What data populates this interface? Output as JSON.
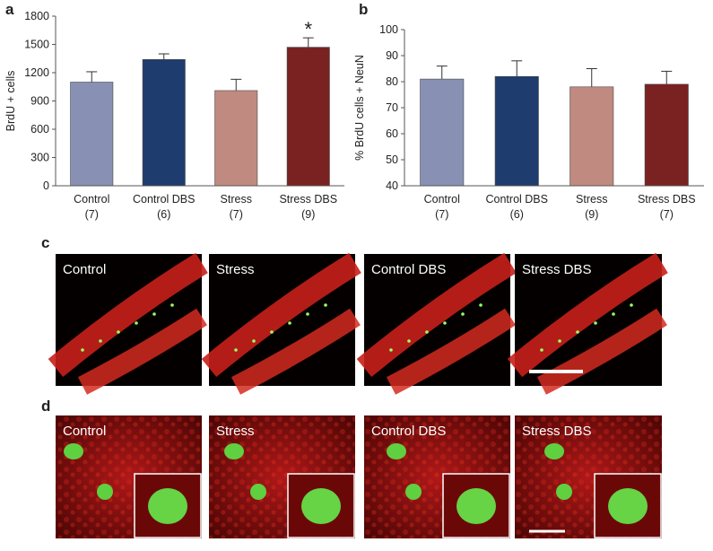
{
  "chart_data": [
    {
      "type": "bar",
      "ylabel": "BrdU + cells",
      "categories": [
        "Control",
        "Control DBS",
        "Stress",
        "Stress DBS"
      ],
      "counts": [
        "(7)",
        "(6)",
        "(7)",
        "(9)"
      ],
      "values": [
        1100,
        1340,
        1010,
        1470
      ],
      "errors": [
        110,
        60,
        120,
        100
      ],
      "colors": [
        "#8891b4",
        "#1f3c6e",
        "#c08a80",
        "#7a2221"
      ],
      "ylim": [
        0,
        1800
      ],
      "yticks": [
        0,
        300,
        600,
        900,
        1200,
        1500,
        1800
      ],
      "annotations": [
        {
          "text": "*",
          "x": "Stress DBS"
        }
      ]
    },
    {
      "type": "bar",
      "ylabel": "% BrdU cells + NeuN",
      "categories": [
        "Control",
        "Control DBS",
        "Stress",
        "Stress DBS"
      ],
      "counts": [
        "(7)",
        "(6)",
        "(9)",
        "(7)"
      ],
      "values": [
        81,
        82,
        78,
        79
      ],
      "errors": [
        5,
        6,
        7,
        5
      ],
      "colors": [
        "#8891b4",
        "#1f3c6e",
        "#c08a80",
        "#7a2221"
      ],
      "ylim": [
        40,
        100
      ],
      "yticks": [
        40,
        50,
        60,
        70,
        80,
        90,
        100
      ],
      "annotations": []
    }
  ],
  "figure": {
    "panel_letters": [
      "a",
      "b",
      "c",
      "d"
    ],
    "row_c": [
      "Control",
      "Stress",
      "Control DBS",
      "Stress DBS"
    ],
    "row_d": [
      "Control",
      "Stress",
      "Control DBS",
      "Stress DBS"
    ]
  }
}
